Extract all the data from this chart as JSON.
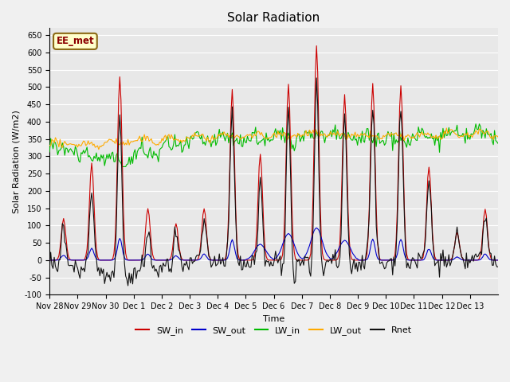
{
  "title": "Solar Radiation",
  "ylabel": "Solar Radiation (W/m2)",
  "xlabel": "Time",
  "ylim": [
    -100,
    670
  ],
  "yticks": [
    -100,
    -50,
    0,
    50,
    100,
    150,
    200,
    250,
    300,
    350,
    400,
    450,
    500,
    550,
    600,
    650
  ],
  "xtick_labels": [
    "Nov 28",
    "Nov 29",
    "Nov 30",
    "Dec 1",
    "Dec 2",
    "Dec 3",
    "Dec 4",
    "Dec 5",
    "Dec 6",
    "Dec 7",
    "Dec 8",
    "Dec 9",
    "Dec 10",
    "Dec 11",
    "Dec 12",
    "Dec 13"
  ],
  "station_label": "EE_met",
  "colors": {
    "SW_in": "#cc0000",
    "SW_out": "#0000cc",
    "LW_in": "#00bb00",
    "LW_out": "#ffaa00",
    "Rnet": "#111111"
  },
  "fig_facecolor": "#f0f0f0",
  "ax_facecolor": "#e8e8e8",
  "grid_color": "#ffffff",
  "title_fontsize": 11,
  "axis_fontsize": 8,
  "tick_fontsize": 7,
  "legend_fontsize": 8,
  "sw_peaks": [
    120,
    280,
    530,
    150,
    105,
    150,
    490,
    305,
    510,
    620,
    475,
    510,
    505,
    270,
    80,
    145
  ],
  "sw_out_scale_per_day": [
    0.12,
    0.12,
    0.12,
    0.12,
    0.12,
    0.12,
    0.12,
    0.15,
    0.15,
    0.15,
    0.12,
    0.12,
    0.12,
    0.12,
    0.12,
    0.12
  ],
  "lw_in_base": [
    320,
    300,
    285,
    310,
    330,
    345,
    350,
    350,
    355,
    360,
    355,
    350,
    350,
    355,
    360,
    365
  ],
  "lw_out_base": [
    335,
    335,
    340,
    345,
    350,
    355,
    358,
    360,
    362,
    365,
    360,
    358,
    358,
    360,
    362,
    365
  ],
  "n_days": 16
}
